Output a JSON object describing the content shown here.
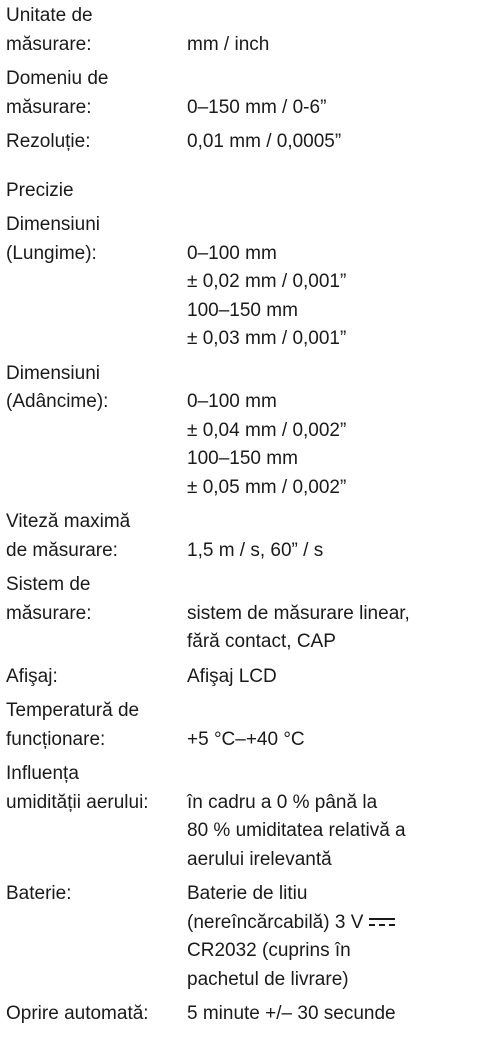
{
  "items": [
    {
      "label": [
        "Unitate de",
        "măsurare:"
      ],
      "value": [
        "mm / inch"
      ]
    },
    {
      "label": [
        "Domeniu de",
        "măsurare:"
      ],
      "value": [
        "0–150 mm / 0-6”"
      ]
    },
    {
      "label": [
        "Rezoluție:"
      ],
      "value": [
        "0,01 mm / 0,0005”"
      ]
    },
    {
      "heading": "Precizie"
    },
    {
      "label": [
        "Dimensiuni",
        "(Lungime):"
      ],
      "value": [
        "0–100 mm",
        "± 0,02 mm / 0,001”",
        "100–150 mm",
        "± 0,03 mm / 0,001”"
      ]
    },
    {
      "label": [
        "Dimensiuni",
        "(Adâncime):"
      ],
      "value": [
        "0–100 mm",
        "± 0,04 mm / 0,002”",
        "100–150 mm",
        "± 0,05 mm / 0,002”"
      ]
    },
    {
      "label": [
        "Viteză maximă",
        "de măsurare:"
      ],
      "value": [
        "1,5 m / s, 60” / s"
      ]
    },
    {
      "label": [
        "Sistem de",
        "măsurare:"
      ],
      "value": [
        "sistem de măsurare linear,",
        "fără contact, CAP"
      ]
    },
    {
      "label": [
        "Afişaj:"
      ],
      "value": [
        "Afişaj LCD"
      ]
    },
    {
      "label": [
        "Temperatură de",
        "funcționare:"
      ],
      "value": [
        "+5 °C–+40 °C"
      ]
    },
    {
      "label": [
        "Influența",
        "umidității aerului:"
      ],
      "value": [
        "în cadru a 0 % până la",
        "80 % umiditatea relativă a",
        "aerului irelevantă"
      ]
    },
    {
      "label": [
        "Baterie:"
      ],
      "value": [
        "Baterie de litiu",
        "(nereîncărcabilă) 3 V",
        "CR2032 (cuprins în",
        "pachetul de livrare)"
      ]
    },
    {
      "label": [
        "Oprire automată:"
      ],
      "value": [
        "5 minute +/– 30 secunde"
      ]
    }
  ]
}
